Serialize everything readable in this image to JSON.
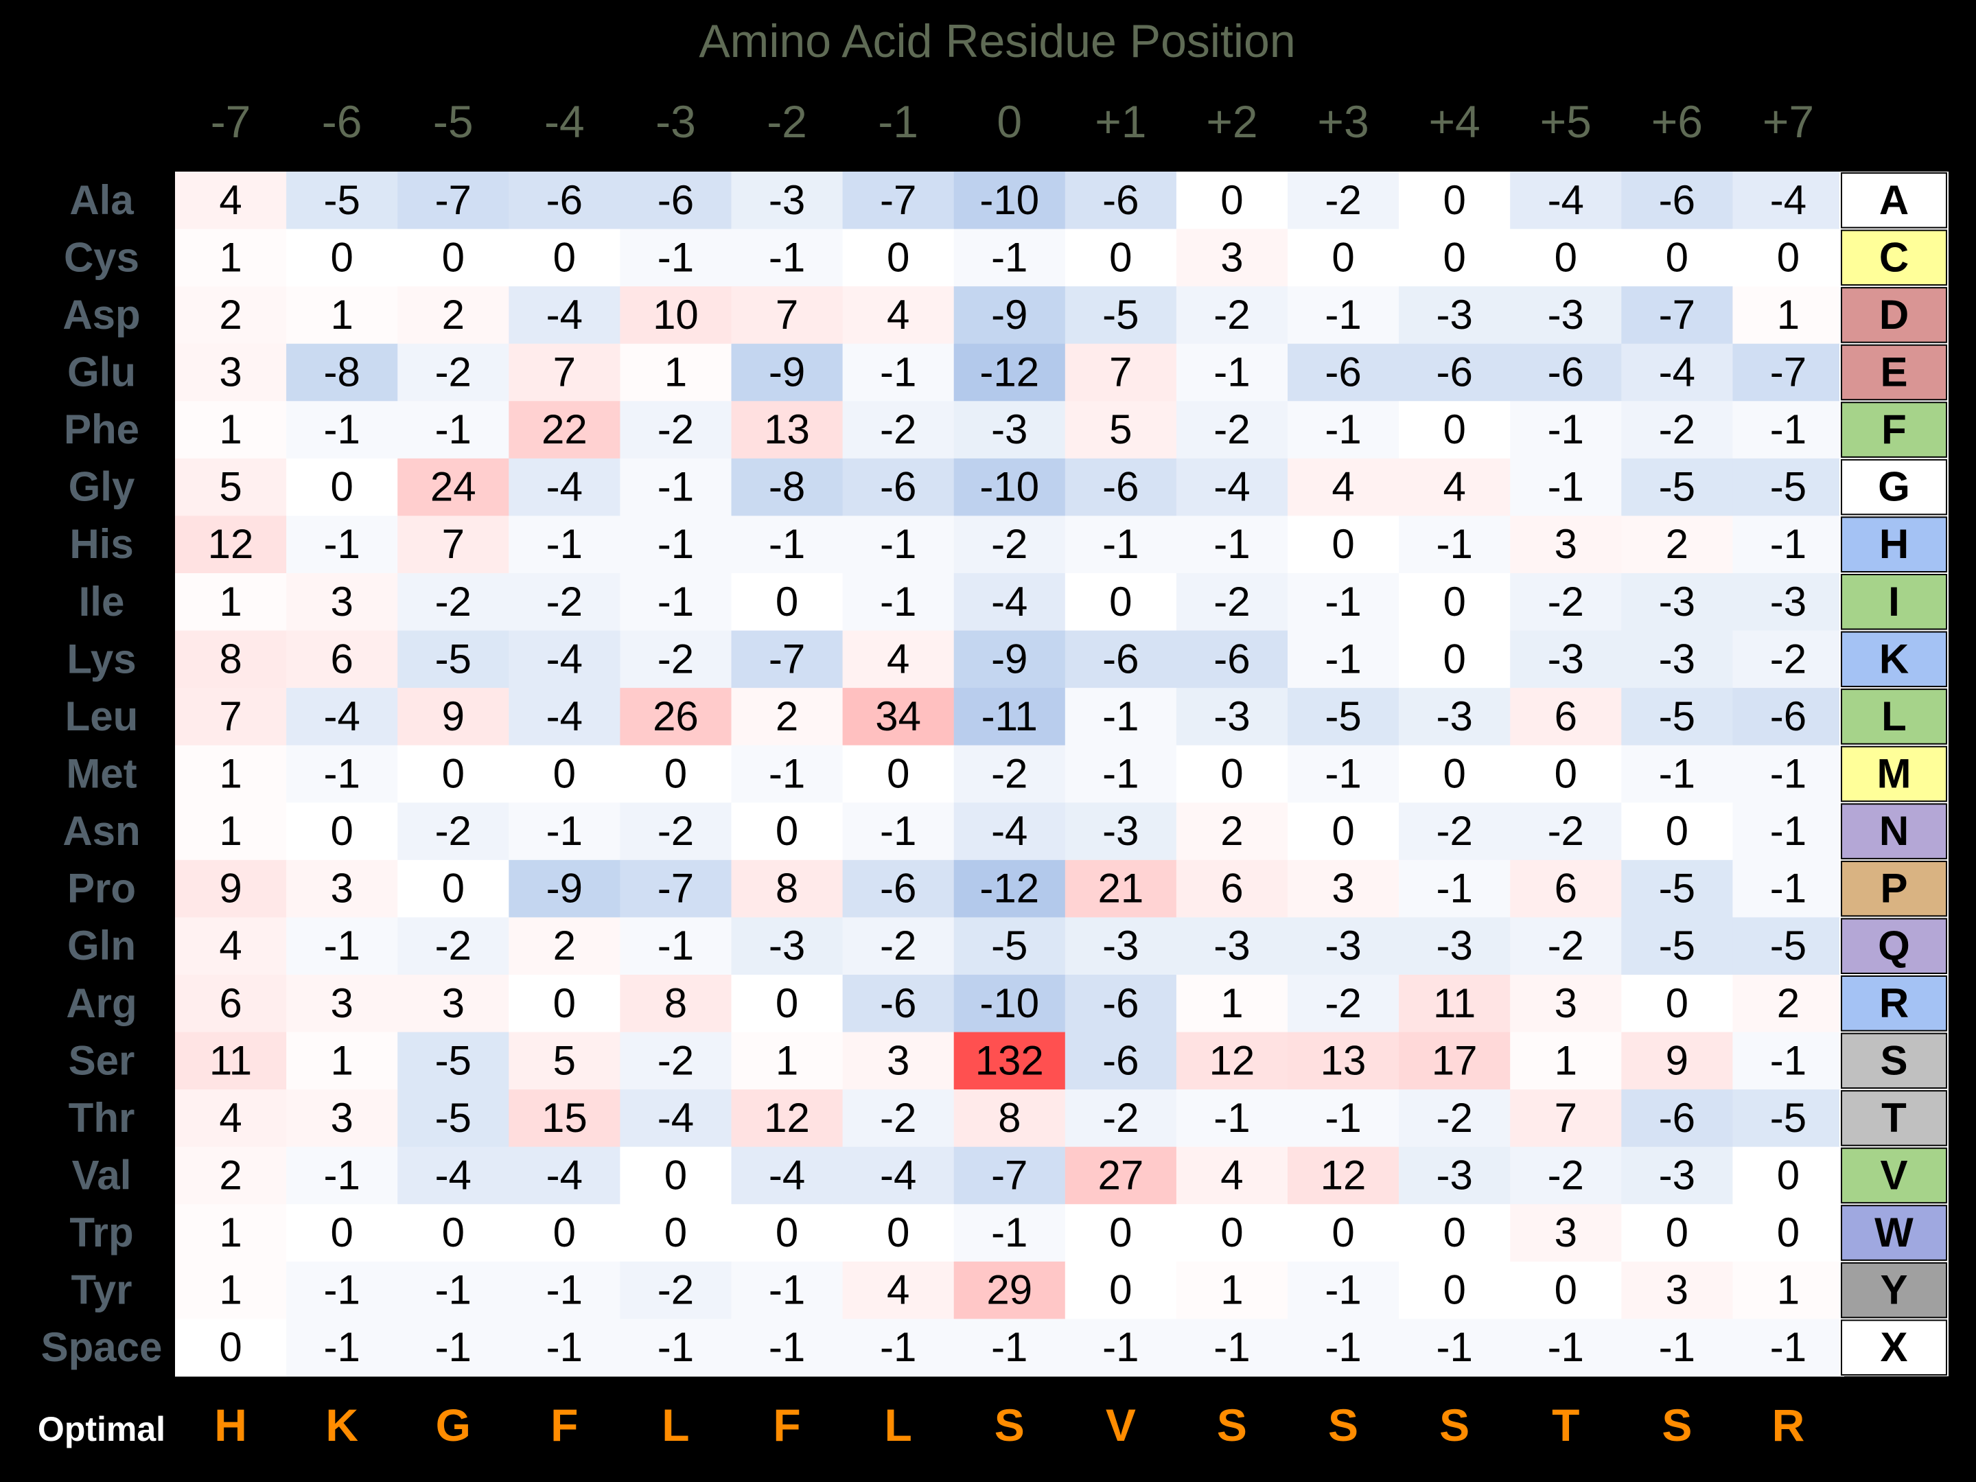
{
  "chart_data": {
    "type": "heatmap",
    "title": "Amino Acid Residue Position",
    "positions": [
      "-7",
      "-6",
      "-5",
      "-4",
      "-3",
      "-2",
      "-1",
      "0",
      "+1",
      "+2",
      "+3",
      "+4",
      "+5",
      "+6",
      "+7"
    ],
    "rows": [
      {
        "label": "Ala",
        "code": "A",
        "color": "#ffffff",
        "values": [
          4,
          -5,
          -7,
          -6,
          -6,
          -3,
          -7,
          -10,
          -6,
          0,
          -2,
          0,
          -4,
          -6,
          -4
        ]
      },
      {
        "label": "Cys",
        "code": "C",
        "color": "#ffff99",
        "values": [
          1,
          0,
          0,
          0,
          -1,
          -1,
          0,
          -1,
          0,
          3,
          0,
          0,
          0,
          0,
          0
        ]
      },
      {
        "label": "Asp",
        "code": "D",
        "color": "#d99594",
        "values": [
          2,
          1,
          2,
          -4,
          10,
          7,
          4,
          -9,
          -5,
          -2,
          -1,
          -3,
          -3,
          -7,
          1
        ]
      },
      {
        "label": "Glu",
        "code": "E",
        "color": "#d99594",
        "values": [
          3,
          -8,
          -2,
          7,
          1,
          -9,
          -1,
          -12,
          7,
          -1,
          -6,
          -6,
          -6,
          -4,
          -7
        ]
      },
      {
        "label": "Phe",
        "code": "F",
        "color": "#a6d38a",
        "values": [
          1,
          -1,
          -1,
          22,
          -2,
          13,
          -2,
          -3,
          5,
          -2,
          -1,
          0,
          -1,
          -2,
          -1
        ]
      },
      {
        "label": "Gly",
        "code": "G",
        "color": "#ffffff",
        "values": [
          5,
          0,
          24,
          -4,
          -1,
          -8,
          -6,
          -10,
          -6,
          -4,
          4,
          4,
          -1,
          -5,
          -5
        ]
      },
      {
        "label": "His",
        "code": "H",
        "color": "#a4c2f4",
        "values": [
          12,
          -1,
          7,
          -1,
          -1,
          -1,
          -1,
          -2,
          -1,
          -1,
          0,
          -1,
          3,
          2,
          -1
        ]
      },
      {
        "label": "Ile",
        "code": "I",
        "color": "#a6d38a",
        "values": [
          1,
          3,
          -2,
          -2,
          -1,
          0,
          -1,
          -4,
          0,
          -2,
          -1,
          0,
          -2,
          -3,
          -3
        ]
      },
      {
        "label": "Lys",
        "code": "K",
        "color": "#a4c2f4",
        "values": [
          8,
          6,
          -5,
          -4,
          -2,
          -7,
          4,
          -9,
          -6,
          -6,
          -1,
          0,
          -3,
          -3,
          -2
        ]
      },
      {
        "label": "Leu",
        "code": "L",
        "color": "#a6d38a",
        "values": [
          7,
          -4,
          9,
          -4,
          26,
          2,
          34,
          -11,
          -1,
          -3,
          -5,
          -3,
          6,
          -5,
          -6
        ]
      },
      {
        "label": "Met",
        "code": "M",
        "color": "#ffff99",
        "values": [
          1,
          -1,
          0,
          0,
          0,
          -1,
          0,
          -2,
          -1,
          0,
          -1,
          0,
          0,
          -1,
          -1
        ]
      },
      {
        "label": "Asn",
        "code": "N",
        "color": "#b4a7d6",
        "values": [
          1,
          0,
          -2,
          -1,
          -2,
          0,
          -1,
          -4,
          -3,
          2,
          0,
          -2,
          -2,
          0,
          -1
        ]
      },
      {
        "label": "Pro",
        "code": "P",
        "color": "#d9b382",
        "values": [
          9,
          3,
          0,
          -9,
          -7,
          8,
          -6,
          -12,
          21,
          6,
          3,
          -1,
          6,
          -5,
          -1
        ]
      },
      {
        "label": "Gln",
        "code": "Q",
        "color": "#b4a7d6",
        "values": [
          4,
          -1,
          -2,
          2,
          -1,
          -3,
          -2,
          -5,
          -3,
          -3,
          -3,
          -3,
          -2,
          -5,
          -5
        ]
      },
      {
        "label": "Arg",
        "code": "R",
        "color": "#a4c2f4",
        "values": [
          6,
          3,
          3,
          0,
          8,
          0,
          -6,
          -10,
          -6,
          1,
          -2,
          11,
          3,
          0,
          2
        ]
      },
      {
        "label": "Ser",
        "code": "S",
        "color": "#c0c0c0",
        "values": [
          11,
          1,
          -5,
          5,
          -2,
          1,
          3,
          132,
          -6,
          12,
          13,
          17,
          1,
          9,
          -1
        ]
      },
      {
        "label": "Thr",
        "code": "T",
        "color": "#c0c0c0",
        "values": [
          4,
          3,
          -5,
          15,
          -4,
          12,
          -2,
          8,
          -2,
          -1,
          -1,
          -2,
          7,
          -6,
          -5
        ]
      },
      {
        "label": "Val",
        "code": "V",
        "color": "#a6d38a",
        "values": [
          2,
          -1,
          -4,
          -4,
          0,
          -4,
          -4,
          -7,
          27,
          4,
          12,
          -3,
          -2,
          -3,
          0
        ]
      },
      {
        "label": "Trp",
        "code": "W",
        "color": "#9fa8e0",
        "values": [
          1,
          0,
          0,
          0,
          0,
          0,
          0,
          -1,
          0,
          0,
          0,
          0,
          3,
          0,
          0
        ]
      },
      {
        "label": "Tyr",
        "code": "Y",
        "color": "#a0a0a0",
        "values": [
          1,
          -1,
          -1,
          -1,
          -2,
          -1,
          4,
          29,
          0,
          1,
          -1,
          0,
          0,
          3,
          1
        ]
      },
      {
        "label": "Space",
        "code": "X",
        "color": "#ffffff",
        "values": [
          0,
          -1,
          -1,
          -1,
          -1,
          -1,
          -1,
          -1,
          -1,
          -1,
          -1,
          -1,
          -1,
          -1,
          -1
        ]
      }
    ],
    "optimal_label": "Optimal",
    "optimal": [
      "H",
      "K",
      "G",
      "F",
      "L",
      "F",
      "L",
      "S",
      "V",
      "S",
      "S",
      "S",
      "T",
      "S",
      "R"
    ],
    "color_scale": {
      "negative": "#4a7fd0",
      "positive": "#ff5050",
      "neutral": "#ffffff"
    }
  }
}
